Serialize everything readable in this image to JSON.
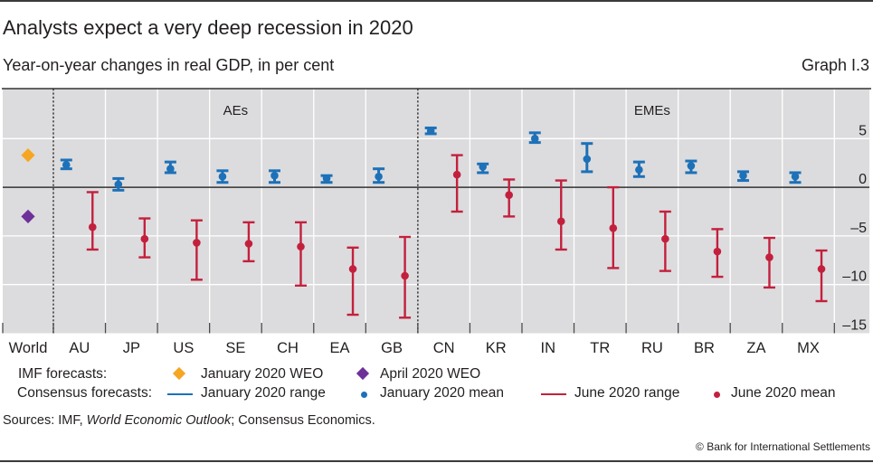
{
  "header": {
    "graph_id": "Graph I.3"
  },
  "chart_data": {
    "type": "scatter",
    "subtype": "range-and-mean",
    "title": "Analysts expect a very deep recession in 2020",
    "subtitle": "Year-on-year changes in real GDP, in per cent",
    "xlabel": "",
    "ylabel": "",
    "ylim": [
      -15,
      10
    ],
    "yticks": [
      5,
      0,
      -5,
      -10,
      -15
    ],
    "ytick_labels": [
      "5",
      "0",
      "–5",
      "–10",
      "–15"
    ],
    "y_axis_side": "right",
    "grid": true,
    "legend_position": "bottom",
    "categories": [
      "World",
      "AU",
      "JP",
      "US",
      "SE",
      "CH",
      "EA",
      "GB",
      "CN",
      "KR",
      "IN",
      "TR",
      "RU",
      "BR",
      "ZA",
      "MX"
    ],
    "groups": [
      {
        "label": "AEs",
        "members": [
          "AU",
          "JP",
          "US",
          "SE",
          "CH",
          "EA",
          "GB"
        ]
      },
      {
        "label": "EMEs",
        "members": [
          "CN",
          "KR",
          "IN",
          "TR",
          "RU",
          "BR",
          "ZA",
          "MX"
        ]
      }
    ],
    "series": [
      {
        "name": "January 2020 WEO",
        "source": "IMF forecasts",
        "kind": "diamond",
        "color": "#f6a623",
        "values": [
          3.3,
          null,
          null,
          null,
          null,
          null,
          null,
          null,
          null,
          null,
          null,
          null,
          null,
          null,
          null,
          null
        ]
      },
      {
        "name": "April 2020 WEO",
        "source": "IMF forecasts",
        "kind": "diamond",
        "color": "#6e3199",
        "values": [
          -3.0,
          null,
          null,
          null,
          null,
          null,
          null,
          null,
          null,
          null,
          null,
          null,
          null,
          null,
          null,
          null
        ]
      },
      {
        "name": "January 2020 range",
        "source": "Consensus forecasts",
        "kind": "range",
        "color": "#1d71b8",
        "low": [
          null,
          1.9,
          -0.3,
          1.5,
          0.5,
          0.5,
          0.5,
          0.5,
          5.5,
          1.5,
          4.6,
          1.6,
          1.1,
          1.5,
          0.7,
          0.5
        ],
        "high": [
          null,
          2.8,
          0.9,
          2.6,
          1.7,
          1.7,
          1.2,
          1.9,
          6.1,
          2.4,
          5.6,
          4.5,
          2.6,
          2.7,
          1.6,
          1.5
        ]
      },
      {
        "name": "January 2020 mean",
        "source": "Consensus forecasts",
        "kind": "mean",
        "color": "#1d71b8",
        "values": [
          null,
          2.3,
          0.3,
          1.9,
          1.1,
          1.2,
          0.9,
          1.1,
          5.8,
          2.1,
          5.0,
          2.9,
          1.8,
          2.2,
          1.2,
          1.1
        ]
      },
      {
        "name": "June 2020 range",
        "source": "Consensus forecasts",
        "kind": "range",
        "color": "#c3203d",
        "low": [
          null,
          -6.4,
          -7.2,
          -9.5,
          -7.6,
          -10.1,
          -13.1,
          -13.4,
          -2.5,
          -3.0,
          -6.4,
          -8.3,
          -8.6,
          -9.2,
          -10.3,
          -11.7
        ],
        "high": [
          null,
          -0.5,
          -3.2,
          -3.4,
          -3.6,
          -3.6,
          -6.2,
          -5.1,
          3.3,
          0.8,
          0.7,
          0.0,
          -2.5,
          -4.3,
          -5.2,
          -6.5
        ]
      },
      {
        "name": "June 2020 mean",
        "source": "Consensus forecasts",
        "kind": "mean",
        "color": "#c3203d",
        "values": [
          null,
          -4.1,
          -5.3,
          -5.7,
          -5.8,
          -6.1,
          -8.4,
          -9.1,
          1.3,
          -0.8,
          -3.5,
          -4.2,
          -5.3,
          -6.6,
          -7.2,
          -8.4
        ]
      }
    ]
  },
  "legend": {
    "imf_label": "IMF forecasts:",
    "consensus_label": "Consensus forecasts:"
  },
  "footer": {
    "sources_prefix": "Sources: IMF, ",
    "sources_italic": "World Economic Outlook",
    "sources_suffix": "; Consensus Economics.",
    "copyright": "© Bank for International Settlements"
  }
}
